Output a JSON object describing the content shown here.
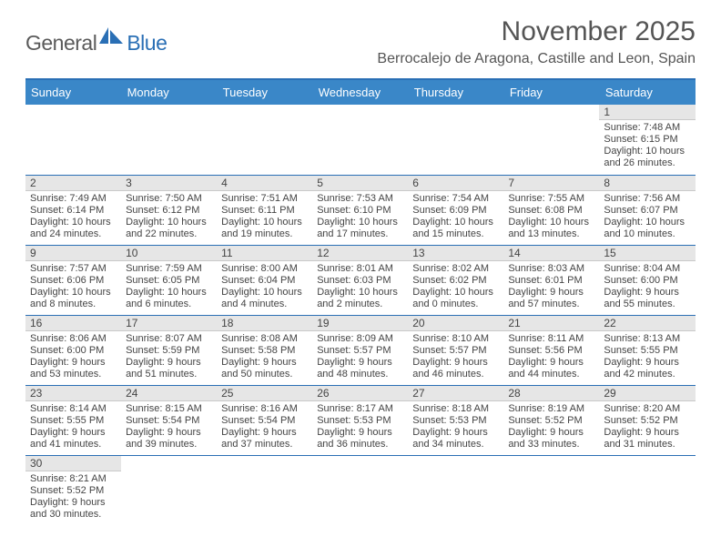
{
  "logo": {
    "part1": "General",
    "part2": "Blue"
  },
  "title": "November 2025",
  "location": "Berrocalejo de Aragona, Castille and Leon, Spain",
  "colors": {
    "header_bg": "#3a87c8",
    "accent": "#2a6fb5",
    "day_header_bg": "#e6e6e6",
    "text": "#444444",
    "logo_gray": "#5a5a5a",
    "logo_blue": "#2a6fb5"
  },
  "weekdays": [
    "Sunday",
    "Monday",
    "Tuesday",
    "Wednesday",
    "Thursday",
    "Friday",
    "Saturday"
  ],
  "weeks": [
    [
      {
        "n": "",
        "lines": []
      },
      {
        "n": "",
        "lines": []
      },
      {
        "n": "",
        "lines": []
      },
      {
        "n": "",
        "lines": []
      },
      {
        "n": "",
        "lines": []
      },
      {
        "n": "",
        "lines": []
      },
      {
        "n": "1",
        "lines": [
          "Sunrise: 7:48 AM",
          "Sunset: 6:15 PM",
          "Daylight: 10 hours",
          "and 26 minutes."
        ]
      }
    ],
    [
      {
        "n": "2",
        "lines": [
          "Sunrise: 7:49 AM",
          "Sunset: 6:14 PM",
          "Daylight: 10 hours",
          "and 24 minutes."
        ]
      },
      {
        "n": "3",
        "lines": [
          "Sunrise: 7:50 AM",
          "Sunset: 6:12 PM",
          "Daylight: 10 hours",
          "and 22 minutes."
        ]
      },
      {
        "n": "4",
        "lines": [
          "Sunrise: 7:51 AM",
          "Sunset: 6:11 PM",
          "Daylight: 10 hours",
          "and 19 minutes."
        ]
      },
      {
        "n": "5",
        "lines": [
          "Sunrise: 7:53 AM",
          "Sunset: 6:10 PM",
          "Daylight: 10 hours",
          "and 17 minutes."
        ]
      },
      {
        "n": "6",
        "lines": [
          "Sunrise: 7:54 AM",
          "Sunset: 6:09 PM",
          "Daylight: 10 hours",
          "and 15 minutes."
        ]
      },
      {
        "n": "7",
        "lines": [
          "Sunrise: 7:55 AM",
          "Sunset: 6:08 PM",
          "Daylight: 10 hours",
          "and 13 minutes."
        ]
      },
      {
        "n": "8",
        "lines": [
          "Sunrise: 7:56 AM",
          "Sunset: 6:07 PM",
          "Daylight: 10 hours",
          "and 10 minutes."
        ]
      }
    ],
    [
      {
        "n": "9",
        "lines": [
          "Sunrise: 7:57 AM",
          "Sunset: 6:06 PM",
          "Daylight: 10 hours",
          "and 8 minutes."
        ]
      },
      {
        "n": "10",
        "lines": [
          "Sunrise: 7:59 AM",
          "Sunset: 6:05 PM",
          "Daylight: 10 hours",
          "and 6 minutes."
        ]
      },
      {
        "n": "11",
        "lines": [
          "Sunrise: 8:00 AM",
          "Sunset: 6:04 PM",
          "Daylight: 10 hours",
          "and 4 minutes."
        ]
      },
      {
        "n": "12",
        "lines": [
          "Sunrise: 8:01 AM",
          "Sunset: 6:03 PM",
          "Daylight: 10 hours",
          "and 2 minutes."
        ]
      },
      {
        "n": "13",
        "lines": [
          "Sunrise: 8:02 AM",
          "Sunset: 6:02 PM",
          "Daylight: 10 hours",
          "and 0 minutes."
        ]
      },
      {
        "n": "14",
        "lines": [
          "Sunrise: 8:03 AM",
          "Sunset: 6:01 PM",
          "Daylight: 9 hours",
          "and 57 minutes."
        ]
      },
      {
        "n": "15",
        "lines": [
          "Sunrise: 8:04 AM",
          "Sunset: 6:00 PM",
          "Daylight: 9 hours",
          "and 55 minutes."
        ]
      }
    ],
    [
      {
        "n": "16",
        "lines": [
          "Sunrise: 8:06 AM",
          "Sunset: 6:00 PM",
          "Daylight: 9 hours",
          "and 53 minutes."
        ]
      },
      {
        "n": "17",
        "lines": [
          "Sunrise: 8:07 AM",
          "Sunset: 5:59 PM",
          "Daylight: 9 hours",
          "and 51 minutes."
        ]
      },
      {
        "n": "18",
        "lines": [
          "Sunrise: 8:08 AM",
          "Sunset: 5:58 PM",
          "Daylight: 9 hours",
          "and 50 minutes."
        ]
      },
      {
        "n": "19",
        "lines": [
          "Sunrise: 8:09 AM",
          "Sunset: 5:57 PM",
          "Daylight: 9 hours",
          "and 48 minutes."
        ]
      },
      {
        "n": "20",
        "lines": [
          "Sunrise: 8:10 AM",
          "Sunset: 5:57 PM",
          "Daylight: 9 hours",
          "and 46 minutes."
        ]
      },
      {
        "n": "21",
        "lines": [
          "Sunrise: 8:11 AM",
          "Sunset: 5:56 PM",
          "Daylight: 9 hours",
          "and 44 minutes."
        ]
      },
      {
        "n": "22",
        "lines": [
          "Sunrise: 8:13 AM",
          "Sunset: 5:55 PM",
          "Daylight: 9 hours",
          "and 42 minutes."
        ]
      }
    ],
    [
      {
        "n": "23",
        "lines": [
          "Sunrise: 8:14 AM",
          "Sunset: 5:55 PM",
          "Daylight: 9 hours",
          "and 41 minutes."
        ]
      },
      {
        "n": "24",
        "lines": [
          "Sunrise: 8:15 AM",
          "Sunset: 5:54 PM",
          "Daylight: 9 hours",
          "and 39 minutes."
        ]
      },
      {
        "n": "25",
        "lines": [
          "Sunrise: 8:16 AM",
          "Sunset: 5:54 PM",
          "Daylight: 9 hours",
          "and 37 minutes."
        ]
      },
      {
        "n": "26",
        "lines": [
          "Sunrise: 8:17 AM",
          "Sunset: 5:53 PM",
          "Daylight: 9 hours",
          "and 36 minutes."
        ]
      },
      {
        "n": "27",
        "lines": [
          "Sunrise: 8:18 AM",
          "Sunset: 5:53 PM",
          "Daylight: 9 hours",
          "and 34 minutes."
        ]
      },
      {
        "n": "28",
        "lines": [
          "Sunrise: 8:19 AM",
          "Sunset: 5:52 PM",
          "Daylight: 9 hours",
          "and 33 minutes."
        ]
      },
      {
        "n": "29",
        "lines": [
          "Sunrise: 8:20 AM",
          "Sunset: 5:52 PM",
          "Daylight: 9 hours",
          "and 31 minutes."
        ]
      }
    ],
    [
      {
        "n": "30",
        "lines": [
          "Sunrise: 8:21 AM",
          "Sunset: 5:52 PM",
          "Daylight: 9 hours",
          "and 30 minutes."
        ]
      },
      {
        "n": "",
        "lines": []
      },
      {
        "n": "",
        "lines": []
      },
      {
        "n": "",
        "lines": []
      },
      {
        "n": "",
        "lines": []
      },
      {
        "n": "",
        "lines": []
      },
      {
        "n": "",
        "lines": []
      }
    ]
  ]
}
